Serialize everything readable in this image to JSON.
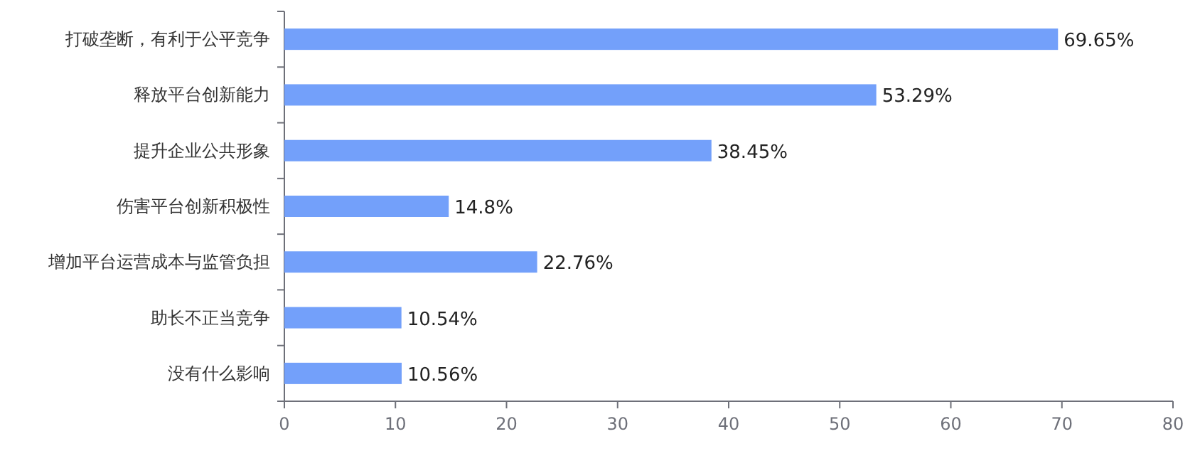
{
  "chart_data": {
    "type": "bar",
    "orientation": "horizontal",
    "categories": [
      "打破垄断，有利于公平竞争",
      "释放平台创新能力",
      "提升企业公共形象",
      "伤害平台创新积极性",
      "增加平台运营成本与监管负担",
      "助长不正当竞争",
      "没有什么影响"
    ],
    "values": [
      69.65,
      53.29,
      38.45,
      14.8,
      22.76,
      10.54,
      10.56
    ],
    "value_labels": [
      "69.65%",
      "53.29%",
      "38.45%",
      "14.8%",
      "22.76%",
      "10.54%",
      "10.56%"
    ],
    "color": "#73a0fa",
    "xlim": [
      0,
      80
    ],
    "xticks": [
      0,
      10,
      20,
      30,
      40,
      50,
      60,
      70,
      80
    ],
    "grid": false
  }
}
